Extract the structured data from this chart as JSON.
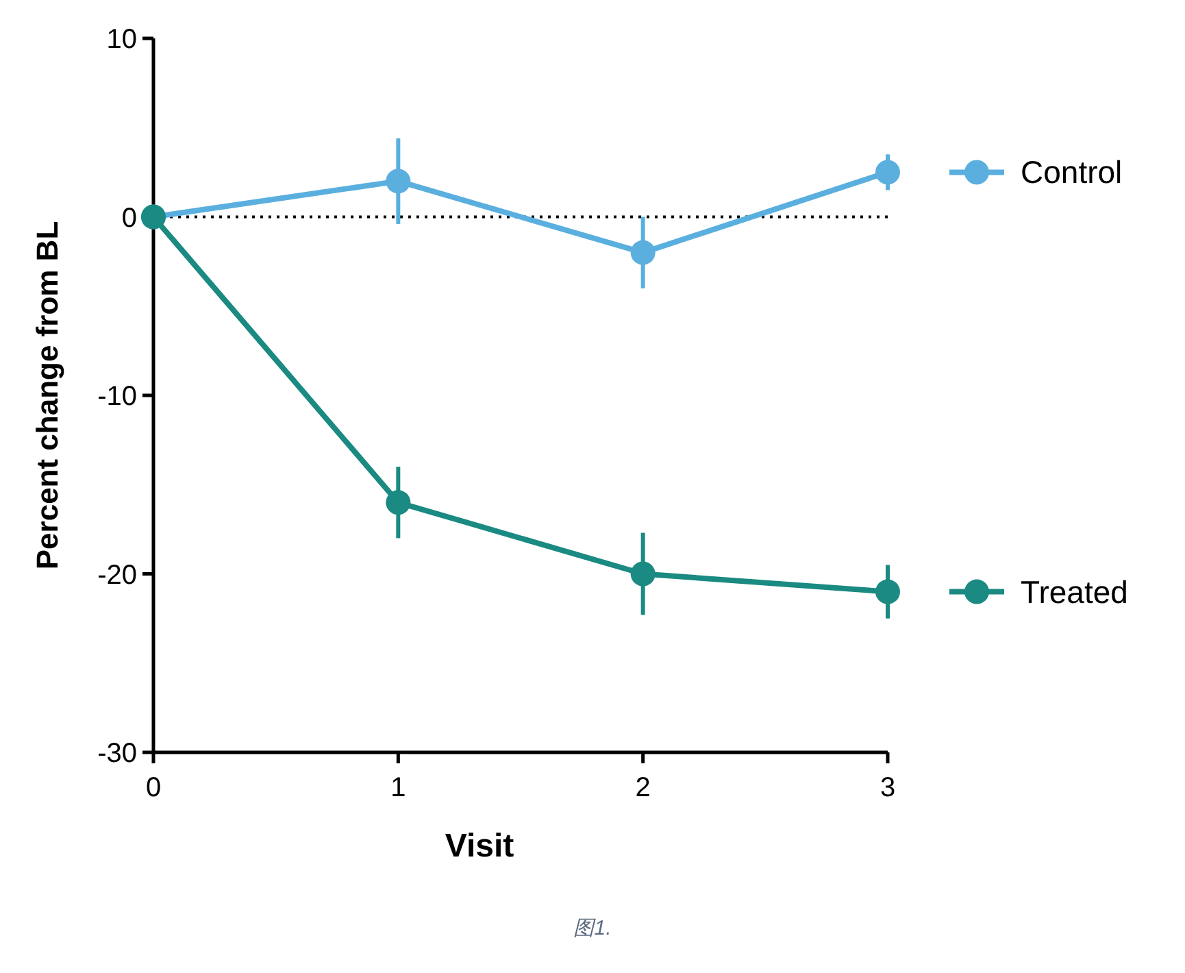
{
  "chart_data": {
    "type": "line",
    "xlabel": "Visit",
    "ylabel": "Percent change from BL",
    "x": [
      0,
      1,
      2,
      3
    ],
    "series": [
      {
        "name": "Control",
        "color": "#5aafdf",
        "values": [
          0,
          2,
          -2,
          2.5
        ],
        "errors": [
          null,
          2.4,
          2,
          1
        ]
      },
      {
        "name": "Treated",
        "color": "#1a8a82",
        "values": [
          0,
          -16,
          -20,
          -21
        ],
        "errors": [
          null,
          2,
          2.3,
          1.5
        ]
      }
    ],
    "xlim": [
      0,
      3
    ],
    "xticks": [
      0,
      1,
      2,
      3
    ],
    "ylim": [
      -30,
      10
    ],
    "yticks": [
      -30,
      -20,
      -10,
      0,
      10
    ],
    "ref_lines": [
      {
        "axis": "y",
        "value": 0,
        "line_style": "dotted",
        "color": "#000000"
      }
    ],
    "marker": "circle",
    "legend": "right",
    "grid": false,
    "annotations": [
      "图1."
    ]
  }
}
